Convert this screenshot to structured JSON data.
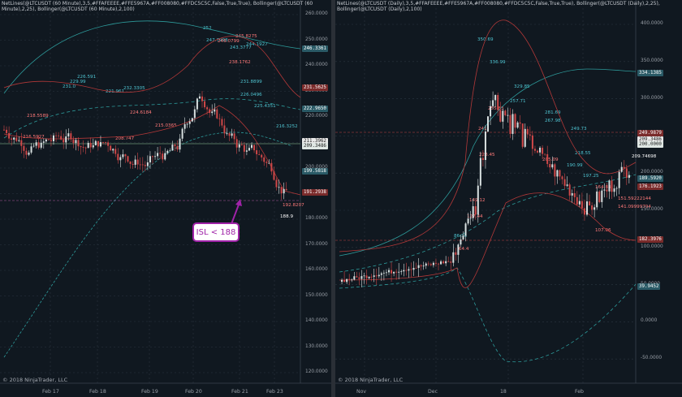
{
  "left": {
    "header": "NetLines(@LTCUSDT (60 Minute),3,5,#FFAFEEEE,#FFE5967A,#FF008080,#FFDC5C5C,False,True,True), Bollinger(@LTCUSDT (60\nMinute),2,25), Bollinger(@LTCUSDT (60 Minute),2,100)",
    "copyright": "© 2018 NinjaTrader, LLC",
    "y_ticks": [
      "260.0000",
      "250.0000",
      "240.0000",
      "230.0000",
      "220.0000",
      "210.0000",
      "200.0000",
      "190.0000",
      "180.0000",
      "170.0000",
      "160.0000",
      "150.0000",
      "140.0000",
      "130.0000",
      "120.0000"
    ],
    "x_labels": [
      "Feb 17",
      "Feb 18",
      "Feb 19",
      "Feb 20",
      "Feb 21",
      "Feb 23"
    ],
    "tags": [
      {
        "text": "246.3361",
        "color": "#2a5a66"
      },
      {
        "text": "231.5625",
        "color": "#7a2b2b"
      },
      {
        "text": "222.9650",
        "color": "#2a5a66"
      },
      {
        "text": "211.3962",
        "color": "#e9e9e9",
        "fg": "#222"
      },
      {
        "text": "209.3486",
        "color": "#dfe7e4",
        "fg": "#222"
      },
      {
        "text": "199.5818",
        "color": "#2a5a66"
      },
      {
        "text": "191.2938",
        "color": "#7a2b2b"
      }
    ],
    "labels": [
      {
        "t": "252",
        "c": "#4fc3d0"
      },
      {
        "t": "247.7998",
        "c": "#4fc3d0"
      },
      {
        "t": "249.0799",
        "c": "#ff7a7a"
      },
      {
        "t": "245.8275",
        "c": "#ff7a7a"
      },
      {
        "t": "244.1927",
        "c": "#4fc3d0"
      },
      {
        "t": "243.3777",
        "c": "#4fc3d0"
      },
      {
        "t": "238.1762",
        "c": "#ff7a7a"
      },
      {
        "t": "231.8899",
        "c": "#4fc3d0"
      },
      {
        "t": "226.0496",
        "c": "#4fc3d0"
      },
      {
        "t": "225.4351",
        "c": "#4fc3d0"
      },
      {
        "t": "216.3252",
        "c": "#4fc3d0"
      },
      {
        "t": "216.5927",
        "c": "#ff7a7a"
      },
      {
        "t": "215.0365",
        "c": "#ff7a7a"
      },
      {
        "t": "218.5589",
        "c": "#ff7a7a"
      },
      {
        "t": "208.747",
        "c": "#ff7a7a"
      },
      {
        "t": "192.8207",
        "c": "#ff7a7a"
      },
      {
        "t": "188.9",
        "c": "#ffffff"
      },
      {
        "t": "232.3305",
        "c": "#4fc3d0"
      },
      {
        "t": "231.0",
        "c": "#4fc3d0"
      },
      {
        "t": "229.99",
        "c": "#4fc3d0"
      },
      {
        "t": "224.6184",
        "c": "#ff7a7a"
      },
      {
        "t": "221.961",
        "c": "#4fc3d0"
      },
      {
        "t": "226.591",
        "c": "#4fc3d0"
      }
    ],
    "callout": "ISL < 188"
  },
  "right": {
    "header": "NetLines(@LTCUSDT (Daily),3,5,#FFAFEEEE,#FFE5967A,#FF008080,#FFDC5C5C,False,True,True), Bollinger(@LTCUSDT (Daily),2,25),\nBollinger(@LTCUSDT (Daily),2,100)",
    "copyright": "© 2018 NinjaTrader, LLC",
    "y_ticks": [
      "400.0000",
      "350.0000",
      "300.0000",
      "250.0000",
      "200.0000",
      "150.0000",
      "100.0000",
      "50.0000",
      "0.0000",
      "-50.0000"
    ],
    "x_labels": [
      "Nov",
      "Dec",
      "18",
      "Feb"
    ],
    "tags": [
      {
        "text": "334.1385",
        "color": "#2a5a66"
      },
      {
        "text": "249.9879",
        "color": "#7a2b2b"
      },
      {
        "text": "209.3486",
        "color": "#e9e9e9",
        "fg": "#222"
      },
      {
        "text": "200.0000",
        "color": "#dfe7e4",
        "fg": "#222"
      },
      {
        "text": "189.5920",
        "color": "#2a5a66"
      },
      {
        "text": "176.1923",
        "color": "#7a2b2b"
      },
      {
        "text": "182.3976",
        "color": "#7a2b2b"
      },
      {
        "text": "39.9452",
        "color": "#2a5a66"
      }
    ],
    "labels": [
      {
        "t": "350.69",
        "c": "#4fc3d0"
      },
      {
        "t": "336.99",
        "c": "#4fc3d0"
      },
      {
        "t": "329.85",
        "c": "#4fc3d0"
      },
      {
        "t": "281.69",
        "c": "#4fc3d0"
      },
      {
        "t": "267.98",
        "c": "#4fc3d0"
      },
      {
        "t": "255.83",
        "c": "#ff7a7a"
      },
      {
        "t": "241",
        "c": "#ff7a7a"
      },
      {
        "t": "249.73",
        "c": "#4fc3d0"
      },
      {
        "t": "209.74698",
        "c": "#ffffff"
      },
      {
        "t": "205.09",
        "c": "#ff7a7a"
      },
      {
        "t": "218.55",
        "c": "#4fc3d0"
      },
      {
        "t": "190.99",
        "c": "#4fc3d0"
      },
      {
        "t": "151.59222144",
        "c": "#ff7a7a"
      },
      {
        "t": "141.09999794",
        "c": "#ff7a7a"
      },
      {
        "t": "149.12",
        "c": "#ff7a7a"
      },
      {
        "t": "127.44",
        "c": "#ff7a7a"
      },
      {
        "t": "107.06",
        "c": "#ff7a7a"
      },
      {
        "t": "86.36",
        "c": "#4fc3d0"
      },
      {
        "t": "64.4",
        "c": "#ff7a7a"
      },
      {
        "t": "257.71",
        "c": "#4fc3d0"
      },
      {
        "t": "228.45",
        "c": "#ff7a7a"
      },
      {
        "t": "197.25",
        "c": "#4fc3d0"
      },
      {
        "t": "164.83",
        "c": "#ff7a7a"
      }
    ]
  }
}
